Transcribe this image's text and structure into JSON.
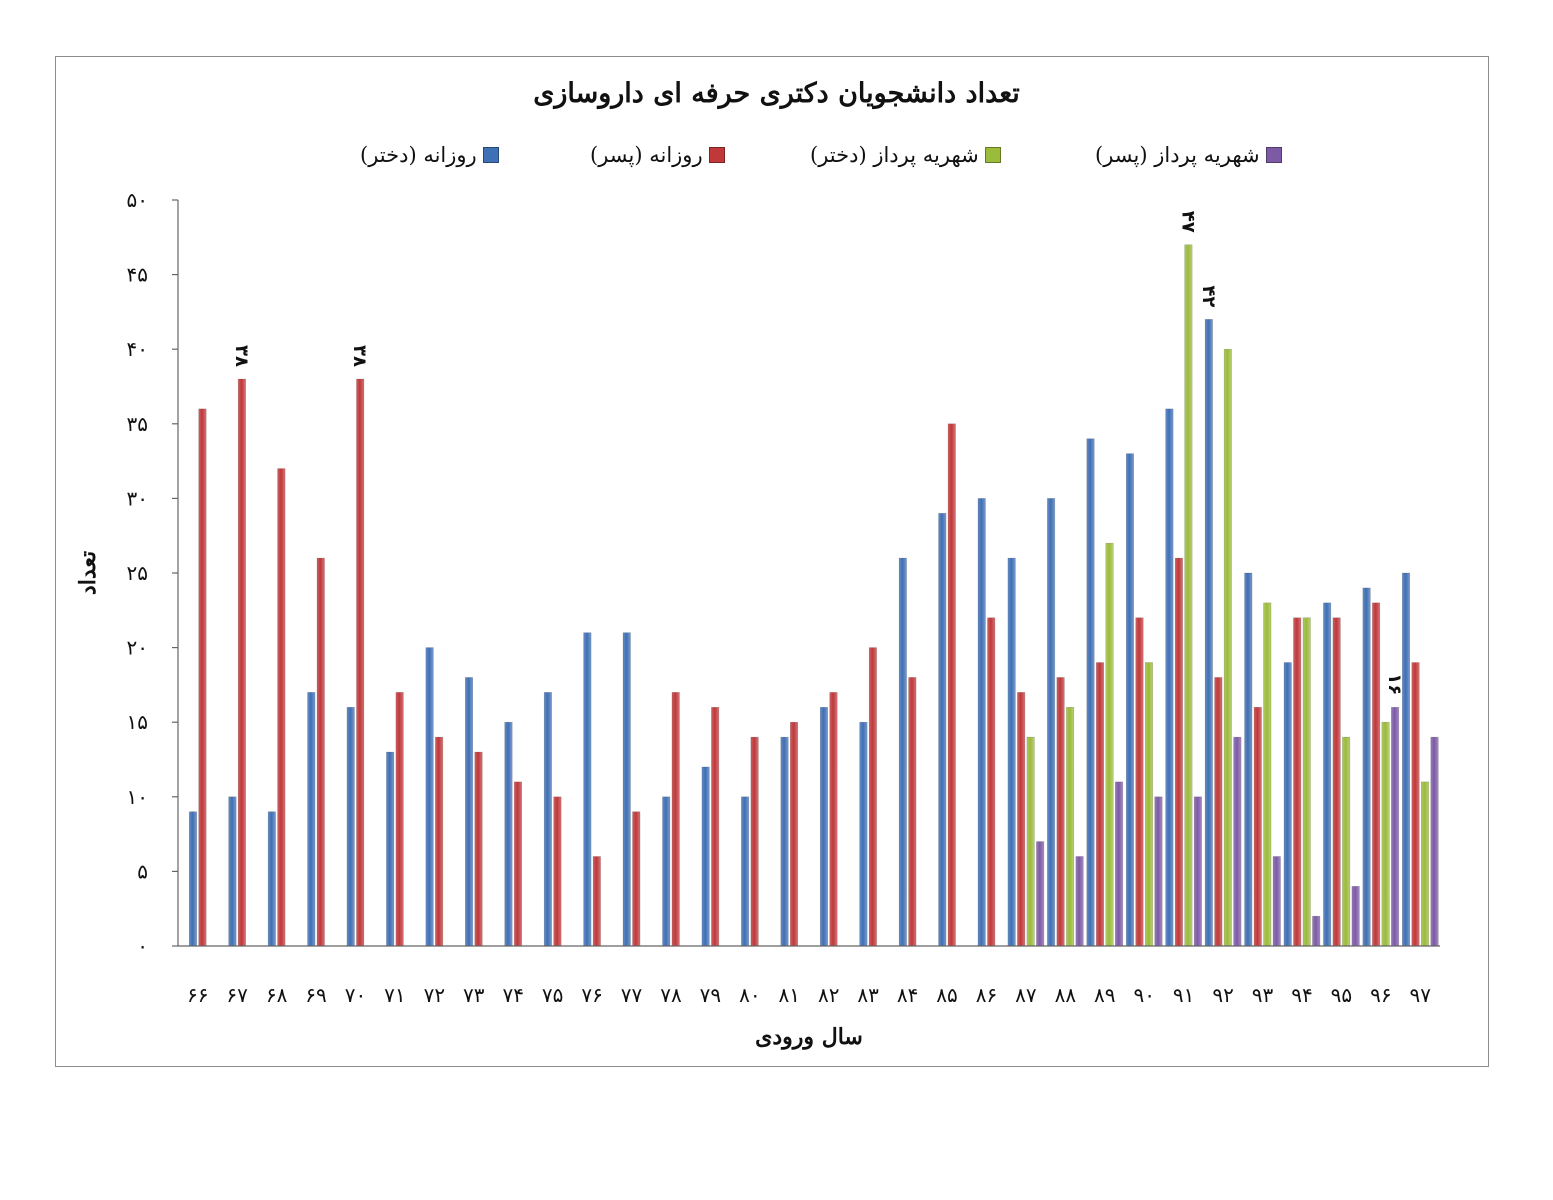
{
  "chart_data": {
    "type": "bar",
    "title": "تعداد دانشجویان دکتری حرفه ای داروسازی",
    "xlabel": "سال ورودی",
    "ylabel": "تعداد",
    "ylim": [
      0,
      50
    ],
    "yticks": [
      "۰",
      "۵",
      "۱۰",
      "۱۵",
      "۲۰",
      "۲۵",
      "۳۰",
      "۳۵",
      "۴۰",
      "۴۵",
      "۵۰"
    ],
    "categories": [
      "۶۶",
      "۶۷",
      "۶۸",
      "۶۹",
      "۷۰",
      "۷۱",
      "۷۲",
      "۷۳",
      "۷۴",
      "۷۵",
      "۷۶",
      "۷۷",
      "۷۸",
      "۷۹",
      "۸۰",
      "۸۱",
      "۸۲",
      "۸۳",
      "۸۴",
      "۸۵",
      "۸۶",
      "۸۷",
      "۸۸",
      "۸۹",
      "۹۰",
      "۹۱",
      "۹۲",
      "۹۳",
      "۹۴",
      "۹۵",
      "۹۶",
      "۹۷"
    ],
    "legend_position": "top",
    "grid": false,
    "series": [
      {
        "name": "روزانه (دختر)",
        "color": "#3f6fb5",
        "values": [
          9,
          10,
          9,
          17,
          16,
          13,
          20,
          18,
          15,
          17,
          21,
          21,
          10,
          12,
          10,
          14,
          16,
          15,
          26,
          29,
          30,
          26,
          30,
          34,
          33,
          36,
          42,
          25,
          19,
          23,
          24,
          25
        ]
      },
      {
        "name": "روزانه (پسر)",
        "color": "#c0383a",
        "values": [
          36,
          38,
          32,
          26,
          38,
          17,
          14,
          13,
          11,
          10,
          6,
          9,
          17,
          16,
          14,
          15,
          17,
          20,
          18,
          35,
          22,
          17,
          18,
          19,
          22,
          26,
          18,
          16,
          22,
          22,
          23,
          19
        ]
      },
      {
        "name": "شهریه پرداز (دختر)",
        "color": "#9bbb3b",
        "values": [
          null,
          null,
          null,
          null,
          null,
          null,
          null,
          null,
          null,
          null,
          null,
          null,
          null,
          null,
          null,
          null,
          null,
          null,
          null,
          null,
          null,
          14,
          16,
          27,
          19,
          47,
          40,
          23,
          22,
          14,
          15,
          11
        ]
      },
      {
        "name": "شهریه پرداز (پسر)",
        "color": "#7d5aa6",
        "values": [
          null,
          null,
          null,
          null,
          null,
          null,
          null,
          null,
          null,
          null,
          null,
          null,
          null,
          null,
          null,
          null,
          null,
          null,
          null,
          null,
          null,
          7,
          6,
          11,
          10,
          10,
          14,
          6,
          2,
          4,
          16,
          14
        ]
      }
    ],
    "annotations": [
      {
        "category": "۶۷",
        "series": 1,
        "text": "۳۸"
      },
      {
        "category": "۷۰",
        "series": 1,
        "text": "۳۸"
      },
      {
        "category": "۹۱",
        "series": 2,
        "text": "۴۷"
      },
      {
        "category": "۹۲",
        "series": 0,
        "text": "۴۲"
      },
      {
        "category": "۹۶",
        "series": 3,
        "text": "۱۶"
      }
    ]
  }
}
